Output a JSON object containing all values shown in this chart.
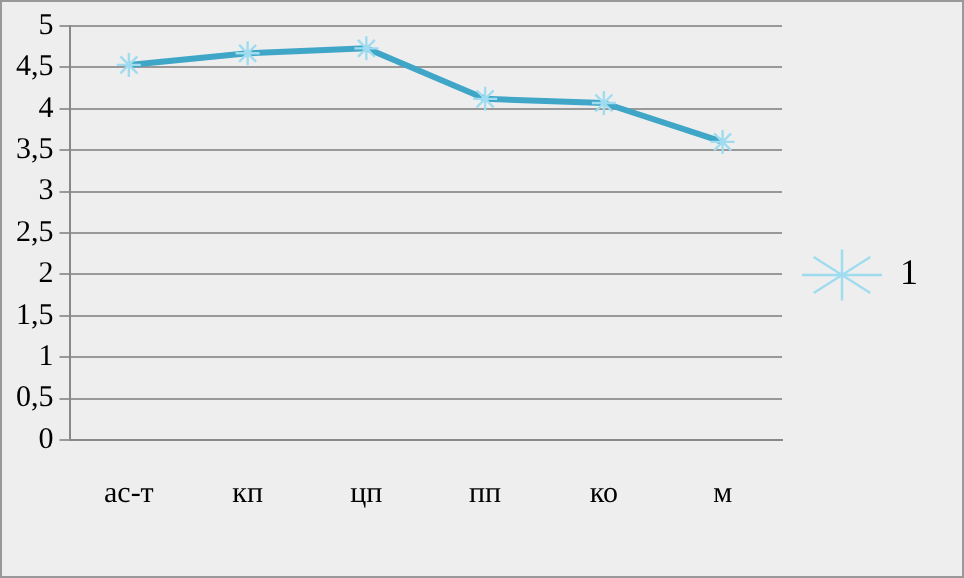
{
  "chart_data": {
    "type": "line",
    "categories": [
      "ас-т",
      "кп",
      "цп",
      "пп",
      "ко",
      "м"
    ],
    "series": [
      {
        "name": "1",
        "color": "#3fa6c8",
        "values": [
          4.53,
          4.67,
          4.73,
          4.12,
          4.07,
          3.6
        ]
      }
    ],
    "ylim": [
      0,
      5
    ],
    "yticks": [
      0,
      {
        "value": 0.5,
        "label": "0,5"
      },
      1,
      {
        "value": 1.5,
        "label": "1,5"
      },
      2,
      {
        "value": 2.5,
        "label": "2,5"
      },
      3,
      {
        "value": 3.5,
        "label": "3,5"
      },
      4,
      {
        "value": 4.5,
        "label": "4,5"
      },
      5
    ],
    "grid": "y",
    "legend": "right",
    "marker": "cross",
    "line_style": "solid"
  }
}
